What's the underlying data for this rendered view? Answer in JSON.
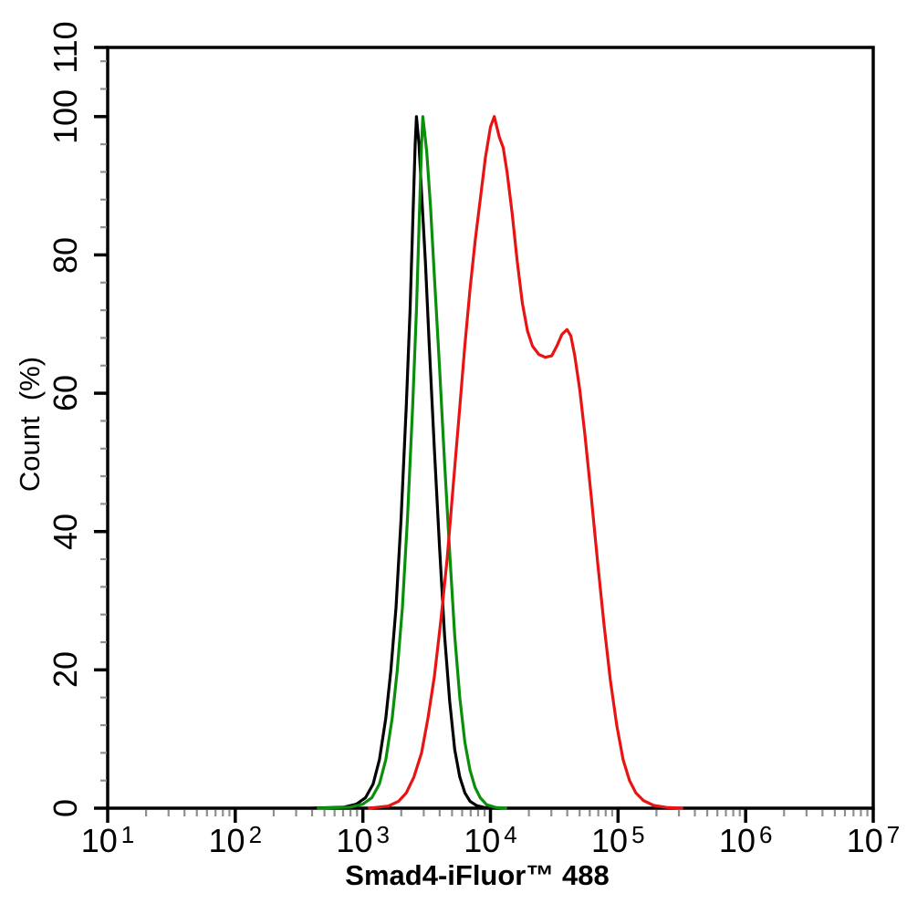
{
  "figure": {
    "background": "#ffffff"
  },
  "chart_data": {
    "type": "line",
    "subtype": "flow-cytometry-overlay-histogram",
    "title": "",
    "xlabel": "Smad4-iFluor™ 488",
    "ylabel": "Count  (%)",
    "grid": false,
    "legend": "none",
    "axis_color": "#000000",
    "minor_tick_color": "#8f8f8f",
    "x_axis": {
      "scale": "log10",
      "tick_base": "10",
      "tick_exponents": [
        1,
        2,
        3,
        4,
        5,
        6,
        7
      ],
      "range_exponents": [
        1,
        7
      ],
      "minor_ticks": "log sub-decades 2-9"
    },
    "y_axis": {
      "ticks": [
        0,
        20,
        40,
        60,
        80,
        100,
        110
      ],
      "minor_tick_step": 4,
      "range": [
        0,
        110
      ]
    },
    "series": [
      {
        "name": "black-curve",
        "color": "#000000",
        "peak": {
          "log10_x": 3.42,
          "percent": 100
        },
        "points": [
          [
            2.6,
            0
          ],
          [
            2.85,
            0.15
          ],
          [
            2.95,
            0.6
          ],
          [
            3.02,
            1.5
          ],
          [
            3.08,
            3.5
          ],
          [
            3.13,
            7
          ],
          [
            3.18,
            13
          ],
          [
            3.22,
            20
          ],
          [
            3.26,
            29
          ],
          [
            3.3,
            42
          ],
          [
            3.34,
            58
          ],
          [
            3.37,
            72
          ],
          [
            3.39,
            84
          ],
          [
            3.41,
            96
          ],
          [
            3.42,
            100
          ],
          [
            3.44,
            96
          ],
          [
            3.46,
            89
          ],
          [
            3.49,
            79
          ],
          [
            3.52,
            67
          ],
          [
            3.56,
            52
          ],
          [
            3.6,
            38
          ],
          [
            3.64,
            25
          ],
          [
            3.68,
            15.5
          ],
          [
            3.72,
            8.5
          ],
          [
            3.76,
            4.5
          ],
          [
            3.8,
            2.2
          ],
          [
            3.84,
            1
          ],
          [
            3.89,
            0.4
          ],
          [
            3.95,
            0.1
          ],
          [
            4.05,
            0
          ]
        ]
      },
      {
        "name": "green-curve",
        "color": "#0a8f0a",
        "peak": {
          "log10_x": 3.47,
          "percent": 100
        },
        "points": [
          [
            2.65,
            0
          ],
          [
            2.9,
            0.15
          ],
          [
            3.0,
            0.6
          ],
          [
            3.07,
            1.5
          ],
          [
            3.13,
            3.5
          ],
          [
            3.18,
            7
          ],
          [
            3.23,
            13
          ],
          [
            3.27,
            20
          ],
          [
            3.31,
            29
          ],
          [
            3.35,
            42
          ],
          [
            3.39,
            58
          ],
          [
            3.42,
            72
          ],
          [
            3.44,
            84
          ],
          [
            3.46,
            96
          ],
          [
            3.47,
            100
          ],
          [
            3.5,
            95
          ],
          [
            3.53,
            87
          ],
          [
            3.56,
            77
          ],
          [
            3.6,
            64
          ],
          [
            3.64,
            50
          ],
          [
            3.68,
            37
          ],
          [
            3.72,
            25
          ],
          [
            3.76,
            16
          ],
          [
            3.8,
            9.5
          ],
          [
            3.84,
            5.5
          ],
          [
            3.88,
            3
          ],
          [
            3.92,
            1.5
          ],
          [
            3.97,
            0.5
          ],
          [
            4.04,
            0.1
          ],
          [
            4.12,
            0
          ]
        ]
      },
      {
        "name": "red-curve",
        "color": "#e81414",
        "peak": {
          "log10_x": 4.03,
          "percent": 100
        },
        "secondary_peak": {
          "log10_x": 4.6,
          "percent": 69
        },
        "local_min": {
          "log10_x": 4.45,
          "percent": 65.2
        },
        "points": [
          [
            3.05,
            0
          ],
          [
            3.2,
            0.3
          ],
          [
            3.28,
            1
          ],
          [
            3.34,
            2.2
          ],
          [
            3.4,
            4.5
          ],
          [
            3.46,
            8
          ],
          [
            3.51,
            13
          ],
          [
            3.56,
            19
          ],
          [
            3.61,
            27
          ],
          [
            3.66,
            36
          ],
          [
            3.71,
            47
          ],
          [
            3.76,
            58
          ],
          [
            3.8,
            67
          ],
          [
            3.84,
            75
          ],
          [
            3.88,
            82
          ],
          [
            3.92,
            88
          ],
          [
            3.96,
            94
          ],
          [
            4.0,
            98.5
          ],
          [
            4.03,
            100
          ],
          [
            4.05,
            98.5
          ],
          [
            4.07,
            97
          ],
          [
            4.1,
            95.5
          ],
          [
            4.13,
            92
          ],
          [
            4.17,
            86
          ],
          [
            4.21,
            79
          ],
          [
            4.25,
            73
          ],
          [
            4.29,
            69
          ],
          [
            4.33,
            66.8
          ],
          [
            4.38,
            65.6
          ],
          [
            4.43,
            65.2
          ],
          [
            4.48,
            65.4
          ],
          [
            4.52,
            66.8
          ],
          [
            4.56,
            68.5
          ],
          [
            4.6,
            69.2
          ],
          [
            4.63,
            68.3
          ],
          [
            4.66,
            65.5
          ],
          [
            4.7,
            60.5
          ],
          [
            4.74,
            54
          ],
          [
            4.79,
            45
          ],
          [
            4.84,
            35.5
          ],
          [
            4.89,
            26.5
          ],
          [
            4.94,
            18.5
          ],
          [
            4.99,
            12
          ],
          [
            5.04,
            7
          ],
          [
            5.09,
            4
          ],
          [
            5.14,
            2.2
          ],
          [
            5.2,
            1.1
          ],
          [
            5.28,
            0.4
          ],
          [
            5.38,
            0.1
          ],
          [
            5.5,
            0
          ]
        ]
      }
    ]
  }
}
